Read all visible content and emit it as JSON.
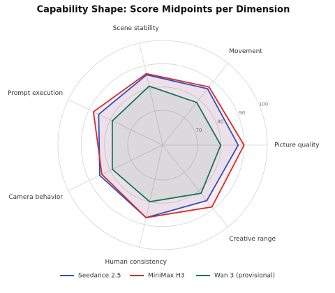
{
  "chart_data": {
    "type": "radar",
    "title": "Capability Shape: Score Midpoints per Dimension",
    "categories": [
      "Picture quality",
      "Movement",
      "Scene stability",
      "Prompt execution",
      "Camera behavior",
      "Human consistency",
      "Creative range"
    ],
    "series": [
      {
        "name": "Seedance 2.5",
        "color": "#2352c8",
        "values": [
          87.5,
          86,
          86,
          85.5,
          85,
          87,
          85.5
        ]
      },
      {
        "name": "MiniMax H3",
        "color": "#d42a2a",
        "values": [
          90,
          87,
          86.5,
          88,
          84,
          87,
          89
        ]
      },
      {
        "name": "Wan 3 (provisional)",
        "color": "#1b7558",
        "values": [
          80,
          78.5,
          81,
          79,
          79,
          80,
          81.5
        ]
      }
    ],
    "ylim": [
      55,
      100
    ],
    "yticks": [
      70,
      80,
      90,
      100
    ],
    "grid": true
  }
}
